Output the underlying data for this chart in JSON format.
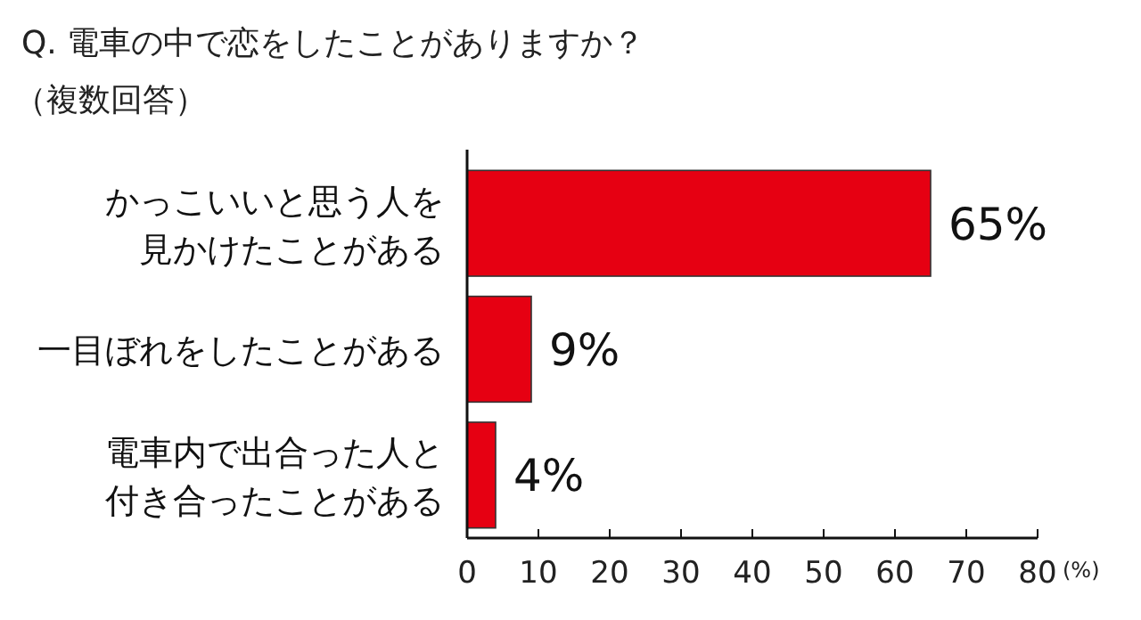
{
  "chart_data": {
    "type": "bar",
    "orientation": "horizontal",
    "title": "Q. 電車の中で恋をしたことがありますか？",
    "subtitle": "（複数回答）",
    "xlabel": "(%)",
    "categories": [
      "かっこいいと思う人を見かけたことがある",
      "一目ぼれをしたことがある",
      "電車内で出合った人と付き合ったことがある"
    ],
    "values": [
      65,
      9,
      4
    ],
    "value_labels": [
      "65%",
      "9%",
      "4%"
    ],
    "color": "#e60012",
    "xlim": [
      0,
      80
    ],
    "xticks": [
      0,
      10,
      20,
      30,
      40,
      50,
      60,
      70,
      80
    ],
    "grid": false
  }
}
